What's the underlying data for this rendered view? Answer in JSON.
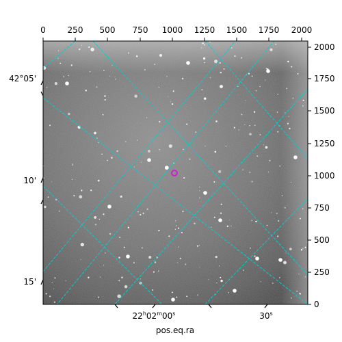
{
  "figure": {
    "xlabel": "pos.eq.ra",
    "top_ticks": [
      "0",
      "250",
      "500",
      "750",
      "1000",
      "1250",
      "1500",
      "1750",
      "2000"
    ],
    "right_ticks": [
      "0",
      "250",
      "500",
      "750",
      "1000",
      "1250",
      "1500",
      "1750",
      "2000"
    ],
    "left_labels": [
      "42°05'",
      "10'",
      "15'"
    ],
    "bottom_labels": [
      {
        "main": "22",
        "h": "h",
        "mid": "02",
        "m": "m",
        "tail": "00",
        "s": "s"
      },
      {
        "main": "30",
        "s": "s"
      }
    ],
    "colors": {
      "grid": "#00d0d0",
      "marker": "#cc22cc",
      "sky": "#6e6e6e"
    }
  }
}
